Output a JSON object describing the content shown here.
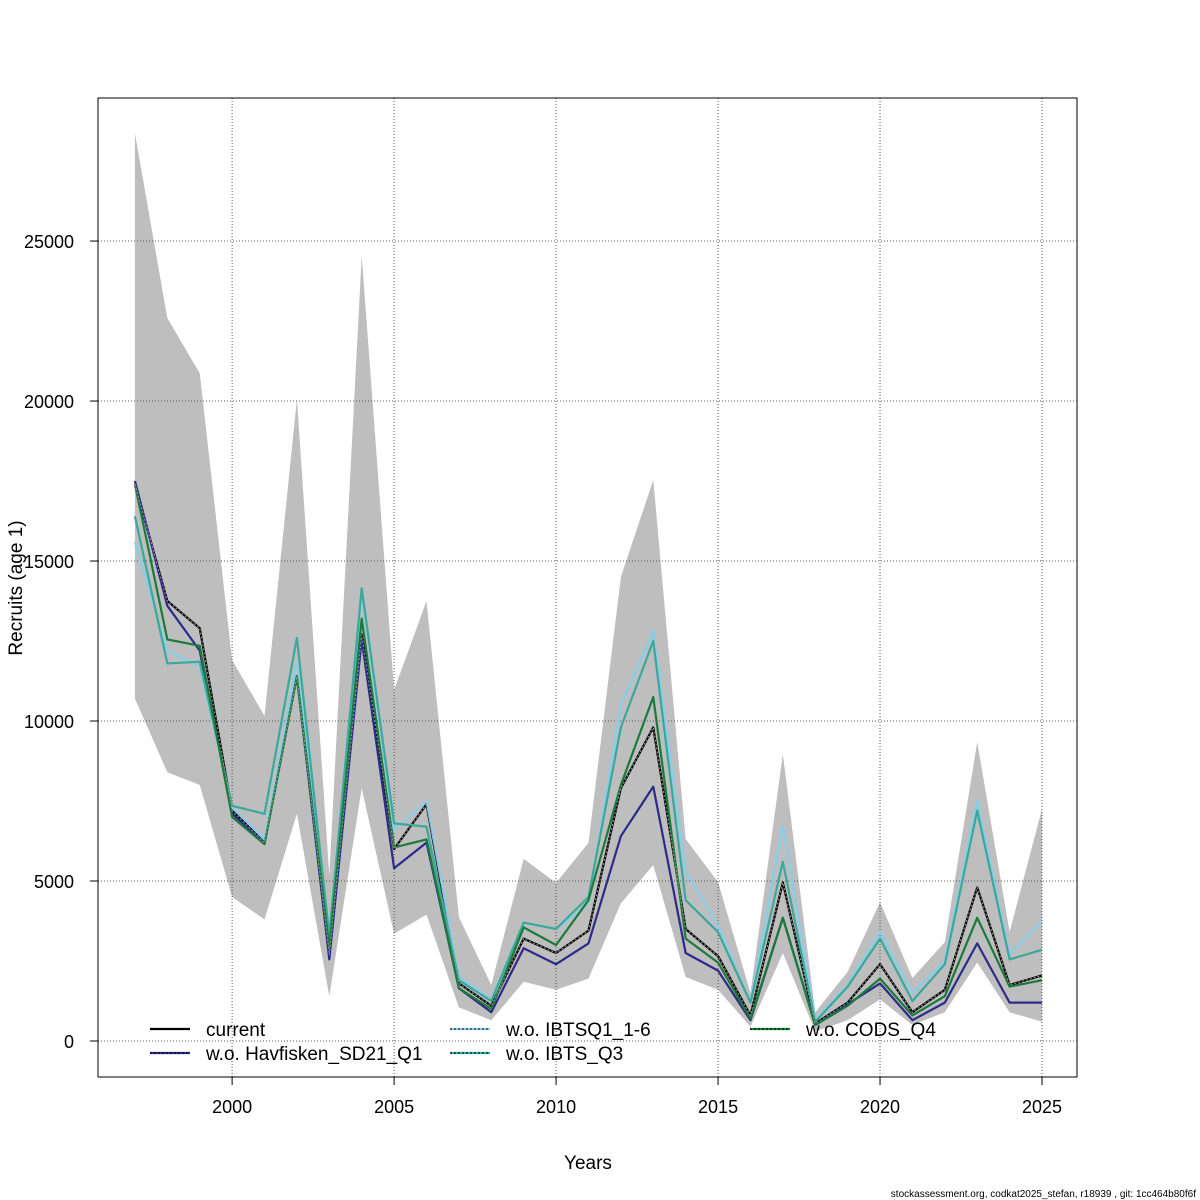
{
  "chart_data": {
    "type": "line",
    "title": "",
    "xlabel": "Years",
    "ylabel": "Recruits (age 1)",
    "xlim": [
      1995.86,
      2026.08
    ],
    "ylim": [
      -1125,
      29470
    ],
    "xticks": [
      2000,
      2005,
      2010,
      2015,
      2020,
      2025
    ],
    "yticks": [
      0,
      5000,
      10000,
      15000,
      20000,
      25000
    ],
    "grid": true,
    "legend_position": "bottom",
    "x": [
      1997,
      1998,
      1999,
      2000,
      2001,
      2002,
      2003,
      2004,
      2005,
      2006,
      2007,
      2008,
      2009,
      2010,
      2011,
      2012,
      2013,
      2014,
      2015,
      2016,
      2017,
      2018,
      2019,
      2020,
      2021,
      2022,
      2023,
      2024,
      2025
    ],
    "confidence_band": {
      "color": "#bebebe",
      "upper": [
        28370,
        22590,
        20870,
        11900,
        10160,
        20060,
        5190,
        24530,
        10970,
        13750,
        3870,
        1750,
        5690,
        4940,
        6190,
        14500,
        17530,
        6310,
        4970,
        1500,
        8970,
        900,
        2160,
        4340,
        1970,
        3090,
        9340,
        3410,
        7250
      ],
      "lower": [
        10700,
        8400,
        8000,
        4500,
        3800,
        7100,
        1400,
        7900,
        3350,
        3950,
        1050,
        650,
        1850,
        1600,
        1950,
        4300,
        5500,
        2000,
        1600,
        450,
        2750,
        300,
        650,
        1300,
        500,
        900,
        2450,
        900,
        600
      ]
    },
    "series": [
      {
        "name": "current",
        "color": "#000000",
        "dashed_overlay": false,
        "values": [
          17400,
          13750,
          12900,
          7200,
          6200,
          11400,
          2700,
          12700,
          6000,
          7400,
          1800,
          1100,
          3200,
          2750,
          3450,
          7900,
          9800,
          3500,
          2650,
          800,
          4950,
          550,
          1200,
          2400,
          900,
          1600,
          4800,
          1750,
          2050
        ]
      },
      {
        "name": "w.o. Havfisken_SD21_Q1",
        "color": "#2e2a8a",
        "dashed_overlay": true,
        "values": [
          17500,
          13600,
          12200,
          7100,
          6200,
          11400,
          2550,
          12550,
          5400,
          6200,
          1650,
          900,
          2900,
          2400,
          3050,
          6400,
          7950,
          2750,
          2200,
          650,
          3850,
          500,
          1150,
          1800,
          650,
          1200,
          3050,
          1200,
          1200
        ]
      },
      {
        "name": "w.o. IBTSQ1_1-6",
        "color": "#87ceeb",
        "dashed_overlay": true,
        "values": [
          15600,
          12200,
          11700,
          7300,
          6300,
          11800,
          3200,
          14000,
          6600,
          7500,
          2000,
          1300,
          3700,
          3500,
          4300,
          10500,
          12800,
          5300,
          3600,
          1200,
          6750,
          650,
          1750,
          3400,
          1500,
          2500,
          7500,
          2700,
          3750
        ]
      },
      {
        "name": "w.o. IBTS_Q3",
        "color": "#3aa89a",
        "dashed_overlay": true,
        "values": [
          16400,
          11800,
          11850,
          7350,
          7100,
          12600,
          3300,
          14150,
          6800,
          6700,
          1900,
          1250,
          3700,
          3500,
          4500,
          9800,
          12500,
          4400,
          3400,
          1200,
          5600,
          600,
          1700,
          3200,
          1250,
          2400,
          7200,
          2550,
          2850
        ]
      },
      {
        "name": "w.o. CODS_Q4",
        "color": "#1a7a3a",
        "dashed_overlay": true,
        "values": [
          17400,
          12550,
          12350,
          7000,
          6150,
          11400,
          2900,
          13200,
          6050,
          6300,
          1650,
          1000,
          3550,
          3000,
          4400,
          8000,
          10750,
          3200,
          2450,
          700,
          3850,
          500,
          1100,
          1950,
          800,
          1400,
          3850,
          1700,
          1900
        ]
      }
    ]
  },
  "footer": "stockassessment.org, codkat2025_stefan, r18939 , git: 1cc464b80f6f"
}
